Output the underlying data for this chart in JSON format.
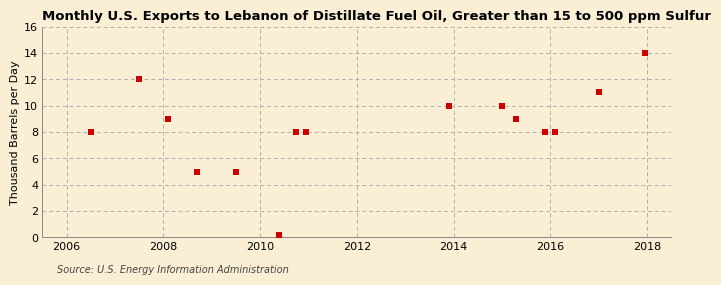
{
  "title": "Monthly U.S. Exports to Lebanon of Distillate Fuel Oil, Greater than 15 to 500 ppm Sulfur",
  "ylabel": "Thousand Barrels per Day",
  "source": "Source: U.S. Energy Information Administration",
  "background_color": "#faefd4",
  "marker_color": "#cc0000",
  "xlim": [
    2005.5,
    2018.5
  ],
  "ylim": [
    0,
    16
  ],
  "xticks": [
    2006,
    2008,
    2010,
    2012,
    2014,
    2016,
    2018
  ],
  "yticks": [
    0,
    2,
    4,
    6,
    8,
    10,
    12,
    14,
    16
  ],
  "data_x": [
    2006.5,
    2007.5,
    2008.1,
    2008.7,
    2009.5,
    2010.4,
    2010.75,
    2010.95,
    2013.9,
    2015.0,
    2015.3,
    2015.9,
    2016.1,
    2017.0,
    2017.95
  ],
  "data_y": [
    8,
    12,
    9,
    5,
    5,
    0.2,
    8,
    8,
    10,
    10,
    9,
    8,
    8,
    11,
    14
  ],
  "title_fontsize": 9.5,
  "axis_label_fontsize": 8,
  "tick_fontsize": 8,
  "source_fontsize": 7
}
